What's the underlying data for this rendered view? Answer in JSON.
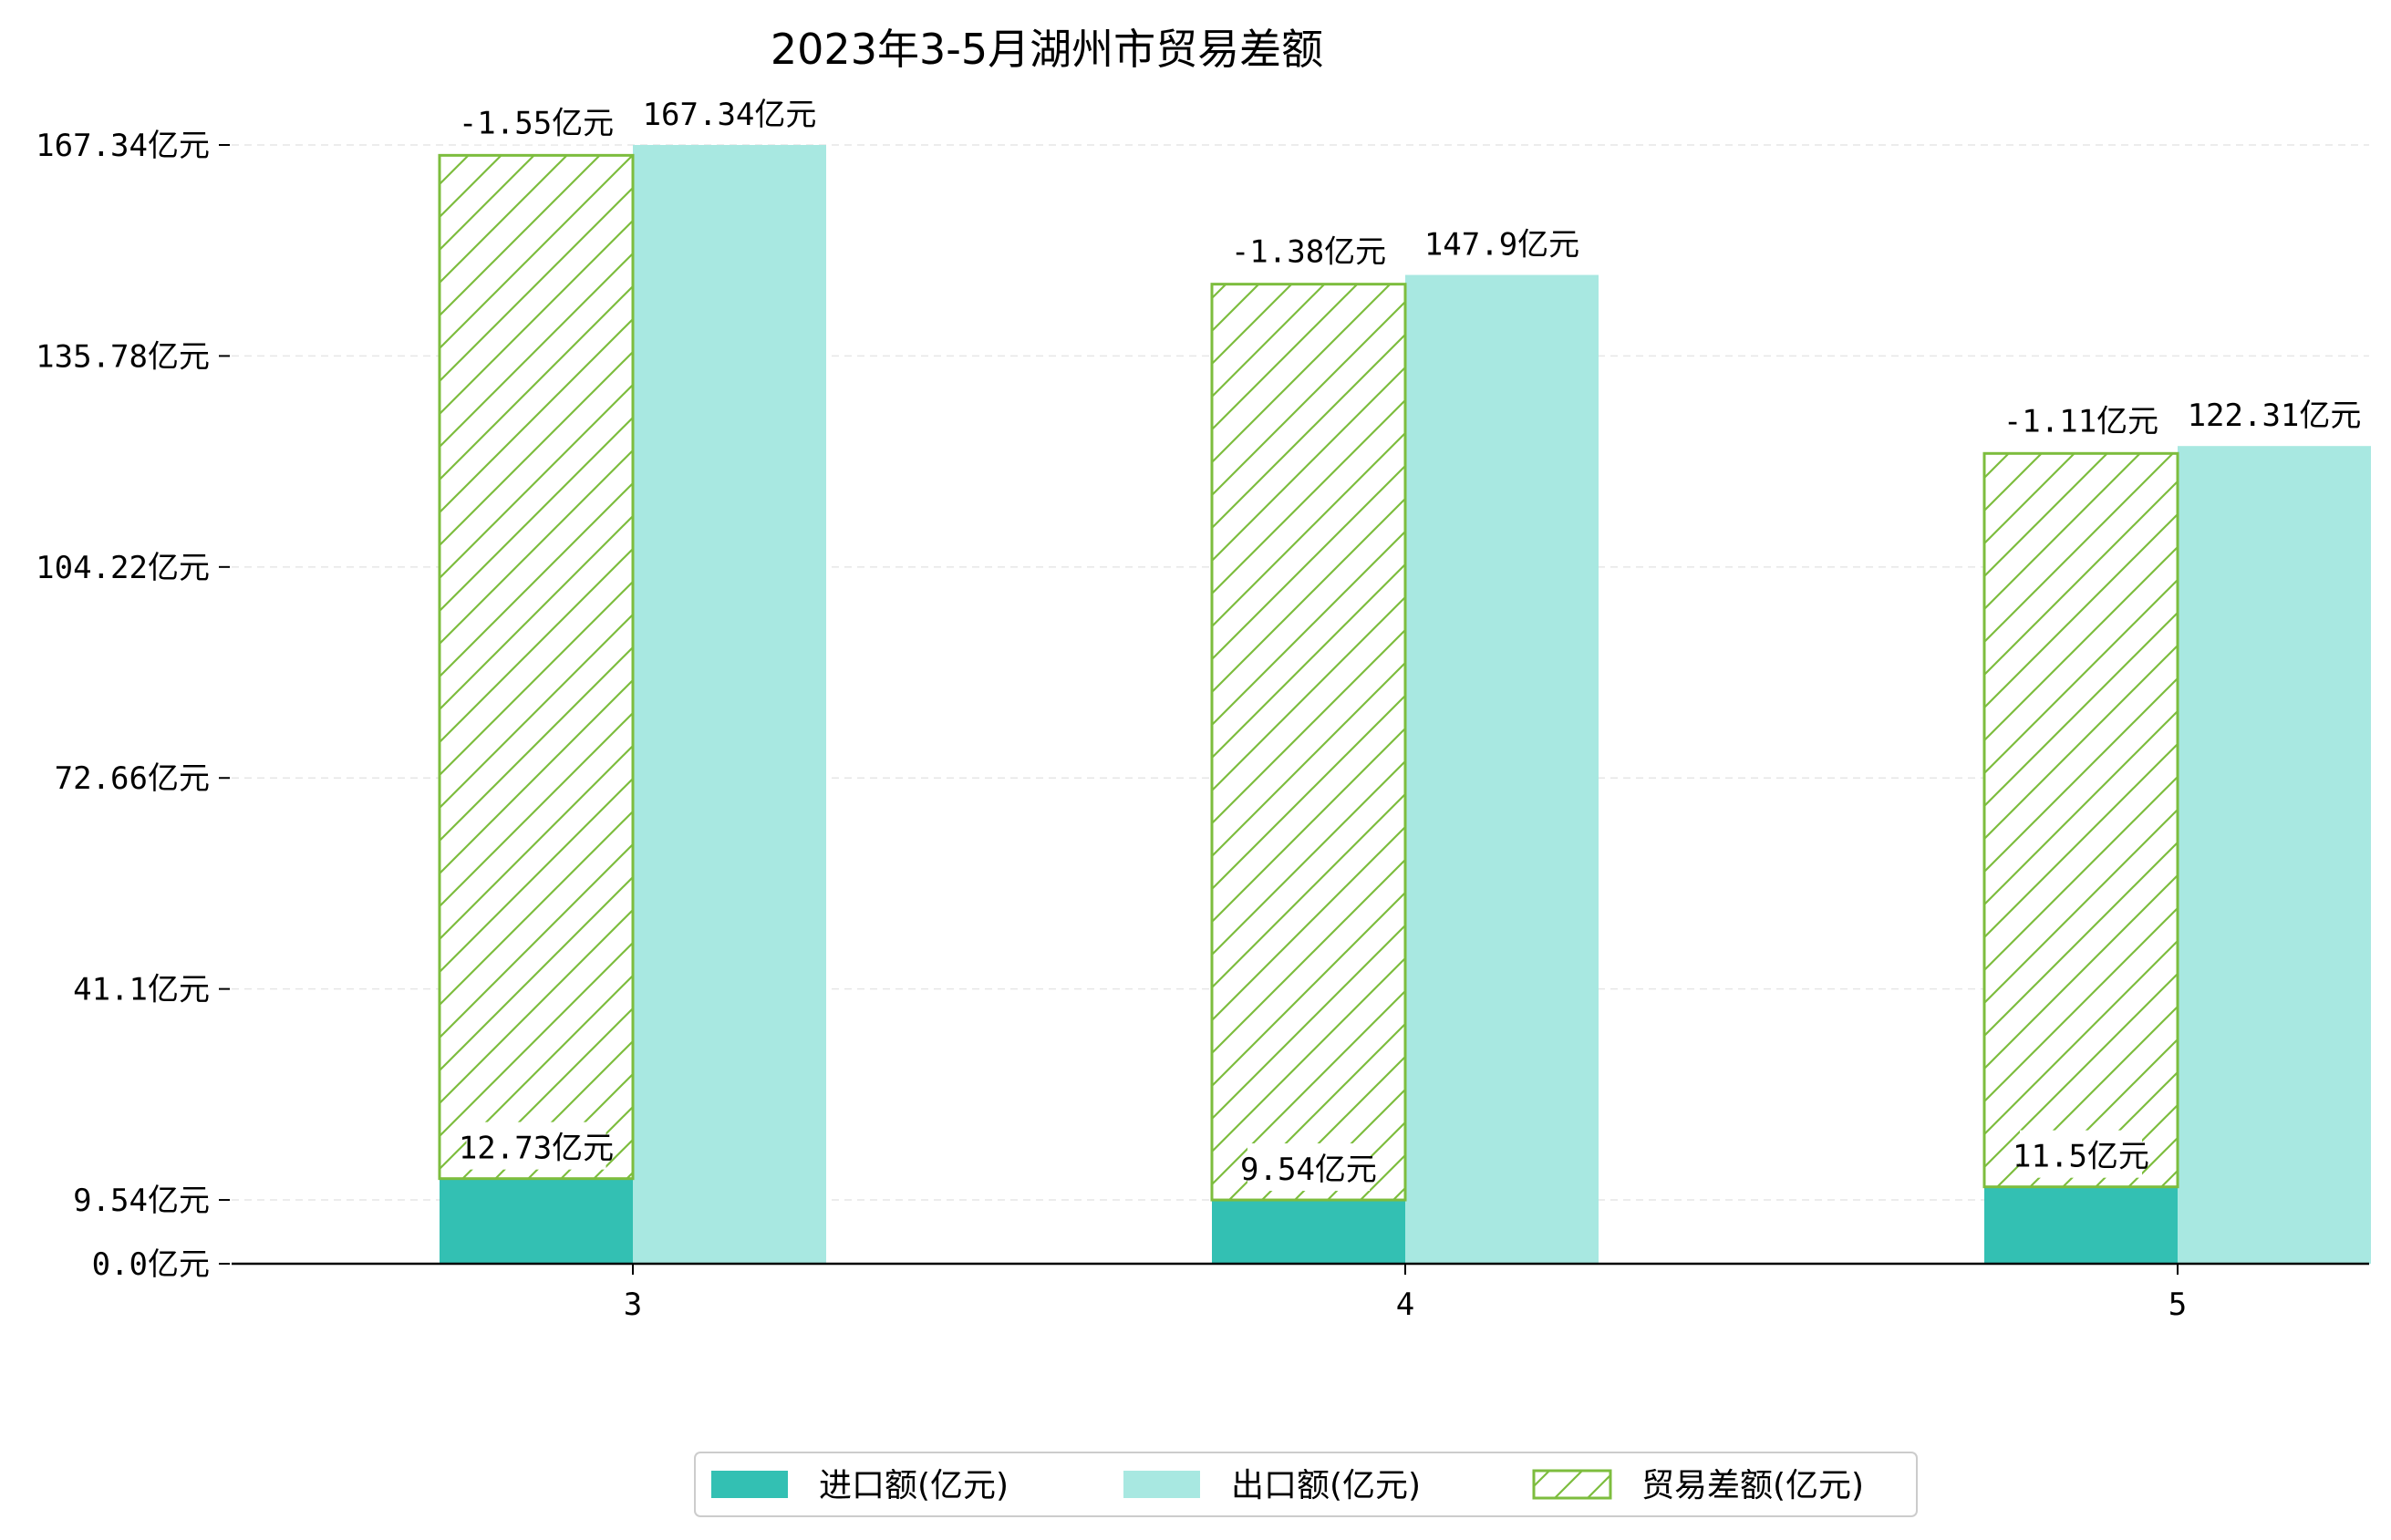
{
  "chart_data": {
    "type": "bar",
    "title": "2023年3-5月湖州市贸易差额",
    "categories": [
      "3",
      "4",
      "5"
    ],
    "series": [
      {
        "name": "进口额(亿元)",
        "color": "#33c0b3",
        "values": [
          12.73,
          9.54,
          11.5
        ],
        "labels": [
          "12.73亿元",
          "9.54亿元",
          "11.5亿元"
        ]
      },
      {
        "name": "出口额(亿元)",
        "color": "#a8e8e1",
        "values": [
          167.34,
          147.9,
          122.31
        ],
        "labels": [
          "167.34亿元",
          "147.9亿元",
          "122.31亿元"
        ]
      },
      {
        "name": "贸易差额(亿元)",
        "color": "#7dbd3e",
        "pattern": "hatch",
        "values": [
          -1.55,
          -1.38,
          -1.11
        ],
        "labels": [
          "-1.55亿元",
          "-1.38亿元",
          "-1.11亿元"
        ]
      }
    ],
    "yticks": [
      0.0,
      9.54,
      41.1,
      72.66,
      104.22,
      135.78,
      167.34
    ],
    "ytick_labels": [
      "0.0亿元",
      "9.54亿元",
      "41.1亿元",
      "72.66亿元",
      "104.22亿元",
      "135.78亿元",
      "167.34亿元"
    ],
    "ylim": [
      0,
      167.34
    ],
    "grid": "horizontal dashed",
    "legend_position": "bottom-center"
  }
}
